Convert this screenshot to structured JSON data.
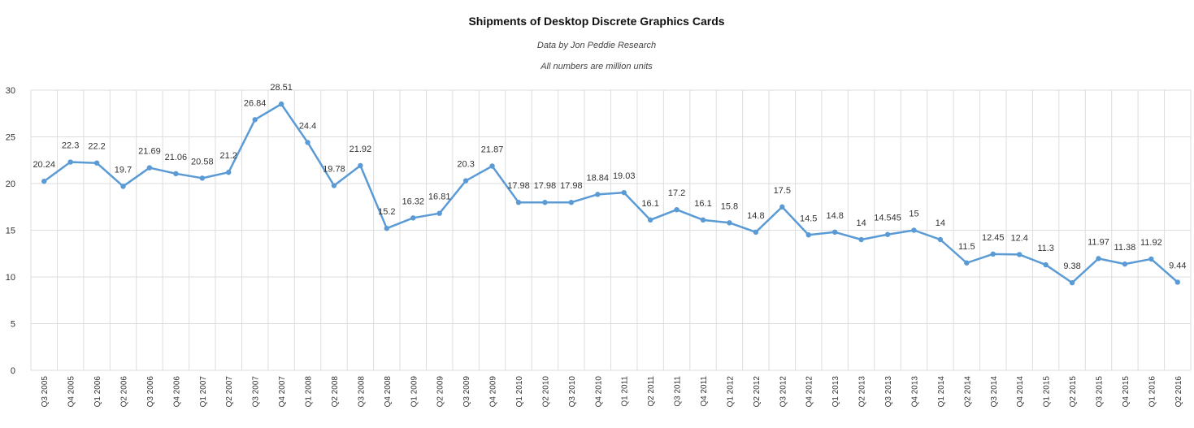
{
  "chart_data": {
    "type": "line",
    "title": "Shipments of Desktop Discrete Graphics Cards",
    "subtitle": "Data by Jon Peddie Research",
    "note": "All numbers are million units",
    "xlabel": "",
    "ylabel": "",
    "ylim": [
      0,
      30
    ],
    "yticks": [
      0,
      5,
      10,
      15,
      20,
      25,
      30
    ],
    "grid": true,
    "legend": "none",
    "line_color": "#5b9bd5",
    "categories": [
      "Q3 2005",
      "Q4 2005",
      "Q1 2006",
      "Q2 2006",
      "Q3 2006",
      "Q4 2006",
      "Q1 2007",
      "Q2 2007",
      "Q3 2007",
      "Q4 2007",
      "Q1 2008",
      "Q2 2008",
      "Q3 2008",
      "Q4 2008",
      "Q1 2009",
      "Q2 2009",
      "Q3 2009",
      "Q4 2009",
      "Q1 2010",
      "Q2 2010",
      "Q3 2010",
      "Q4 2010",
      "Q1 2011",
      "Q2 2011",
      "Q3 2011",
      "Q4 2011",
      "Q1 2012",
      "Q2 2012",
      "Q3 2012",
      "Q4 2012",
      "Q1 2013",
      "Q2 2013",
      "Q3 2013",
      "Q4 2013",
      "Q1 2014",
      "Q2 2014",
      "Q3 2014",
      "Q4 2014",
      "Q1 2015",
      "Q2 2015",
      "Q3 2015",
      "Q4 2015",
      "Q1 2016",
      "Q2 2016"
    ],
    "values": [
      20.24,
      22.3,
      22.2,
      19.7,
      21.69,
      21.06,
      20.58,
      21.2,
      26.84,
      28.51,
      24.4,
      19.78,
      21.92,
      15.2,
      16.32,
      16.81,
      20.3,
      21.87,
      17.98,
      17.98,
      17.98,
      18.84,
      19.03,
      16.1,
      17.2,
      16.1,
      15.8,
      14.8,
      17.5,
      14.5,
      14.8,
      14,
      14.545,
      15,
      14,
      11.5,
      12.45,
      12.4,
      11.3,
      9.38,
      11.97,
      11.38,
      11.92,
      9.44
    ]
  }
}
